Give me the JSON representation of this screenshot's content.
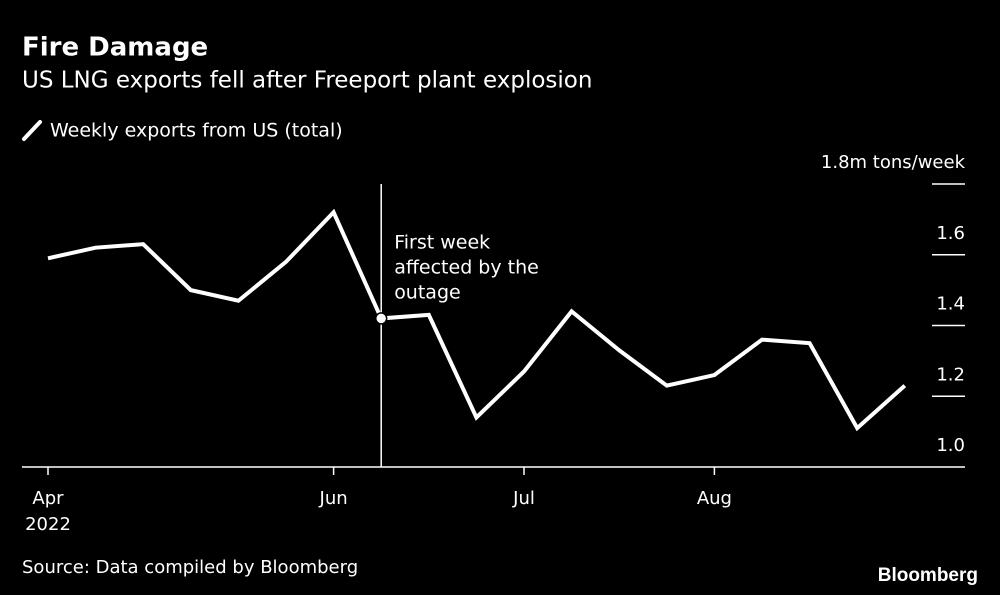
{
  "chart_data": {
    "type": "line",
    "title": "Fire Damage",
    "subtitle": "US LNG exports fell after Freeport plant explosion",
    "categories": [
      "Apr",
      null,
      null,
      null,
      null,
      null,
      "Jun",
      null,
      null,
      null,
      "Jul",
      null,
      null,
      null,
      "Aug",
      null,
      null,
      null,
      null
    ],
    "year_label": "2022",
    "series": [
      {
        "name": "Weekly exports from US (total)",
        "color": "#ffffff",
        "values": [
          1.59,
          1.62,
          1.63,
          1.5,
          1.47,
          1.58,
          1.72,
          1.42,
          1.43,
          1.14,
          1.27,
          1.44,
          1.33,
          1.23,
          1.26,
          1.36,
          1.35,
          1.11,
          1.23
        ]
      }
    ],
    "ylim": [
      1.0,
      1.8
    ],
    "yticks": [
      {
        "value": 1.0,
        "label": "1.0"
      },
      1.2,
      1.4,
      1.6,
      {
        "value": 1.8,
        "label": "1.8m tons/week"
      }
    ],
    "annotation": [
      "First week",
      "affected by the",
      "outage"
    ],
    "source": "Source: Data compiled by Bloomberg",
    "brand": "Bloomberg"
  }
}
